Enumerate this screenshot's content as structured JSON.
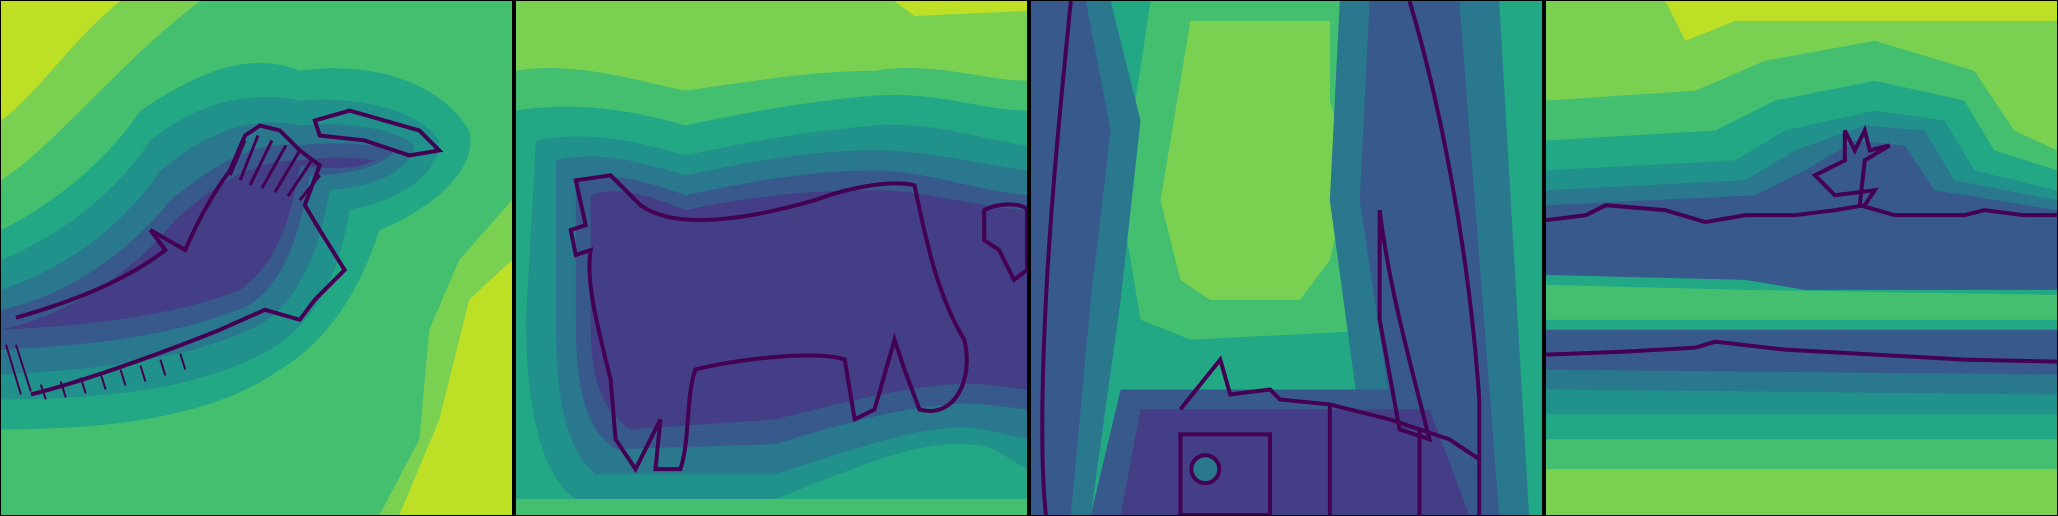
{
  "image": {
    "colormap": "viridis",
    "panel_count": 4,
    "bands": [
      "#440154",
      "#433e85",
      "#38598c",
      "#2a788e",
      "#21918c",
      "#22a884",
      "#44bf70",
      "#7ad151",
      "#bddf26"
    ],
    "panels": [
      {
        "subject": "bird-with-crest-silhouette-distance-map"
      },
      {
        "subject": "quadruped-animal-silhouette-distance-map"
      },
      {
        "subject": "tall-shape-with-wheels-distance-map"
      },
      {
        "subject": "long-low-vehicle-silhouette-distance-map"
      }
    ]
  }
}
